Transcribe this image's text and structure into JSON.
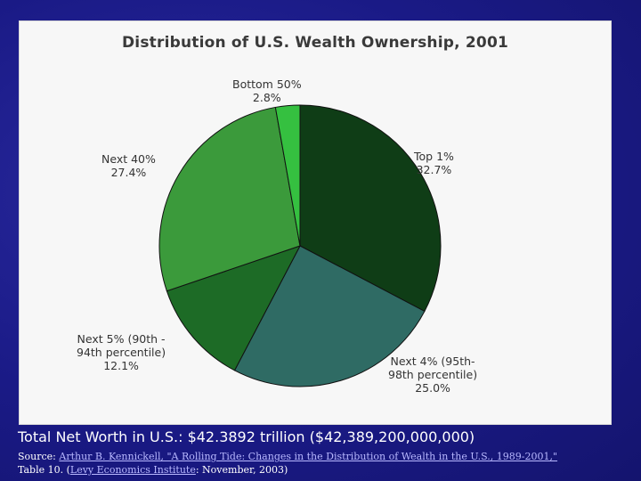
{
  "chart_data": {
    "type": "pie",
    "title": "Distribution of U.S. Wealth Ownership, 2001",
    "slices": [
      {
        "name": "Top 1%",
        "value": 32.7,
        "value_label": "32.7%",
        "color": "#0f3d16"
      },
      {
        "name": "Next 4% (95th-98th percentile)",
        "value": 25.0,
        "value_label": "25.0%",
        "color": "#2f6b64"
      },
      {
        "name": "Next 5% (90th - 94th percentile)",
        "value": 12.1,
        "value_label": "12.1%",
        "color": "#1d6b26"
      },
      {
        "name": "Next 40%",
        "value": 27.4,
        "value_label": "27.4%",
        "color": "#3b9a3b"
      },
      {
        "name": "Bottom 50%",
        "value": 2.8,
        "value_label": "2.8%",
        "color": "#35c040"
      }
    ]
  },
  "labels": {
    "top1": {
      "line1": "Top 1%",
      "pct": "32.7%"
    },
    "next4": {
      "line1": "Next 4% (95th-",
      "line2": "98th percentile)",
      "pct": "25.0%"
    },
    "next5": {
      "line1": "Next 5% (90th -",
      "line2": "94th percentile)",
      "pct": "12.1%"
    },
    "next40": {
      "line1": "Next 40%",
      "pct": "27.4%"
    },
    "bottom50": {
      "line1": "Bottom 50%",
      "pct": "2.8%"
    }
  },
  "footer": {
    "total": "Total Net Worth in U.S.: $42.3892 trillion ($42,389,200,000,000)",
    "source_prefix": "Source: ",
    "source_link": "Arthur B. Kennickell, \"A Rolling Tide: Changes in the Distribution of Wealth in the U.S., 1989-2001,\"",
    "source_table": "Table 10.  (",
    "institute_link": "Levy Economics Institute",
    "source_suffix": ": November, 2003)"
  }
}
